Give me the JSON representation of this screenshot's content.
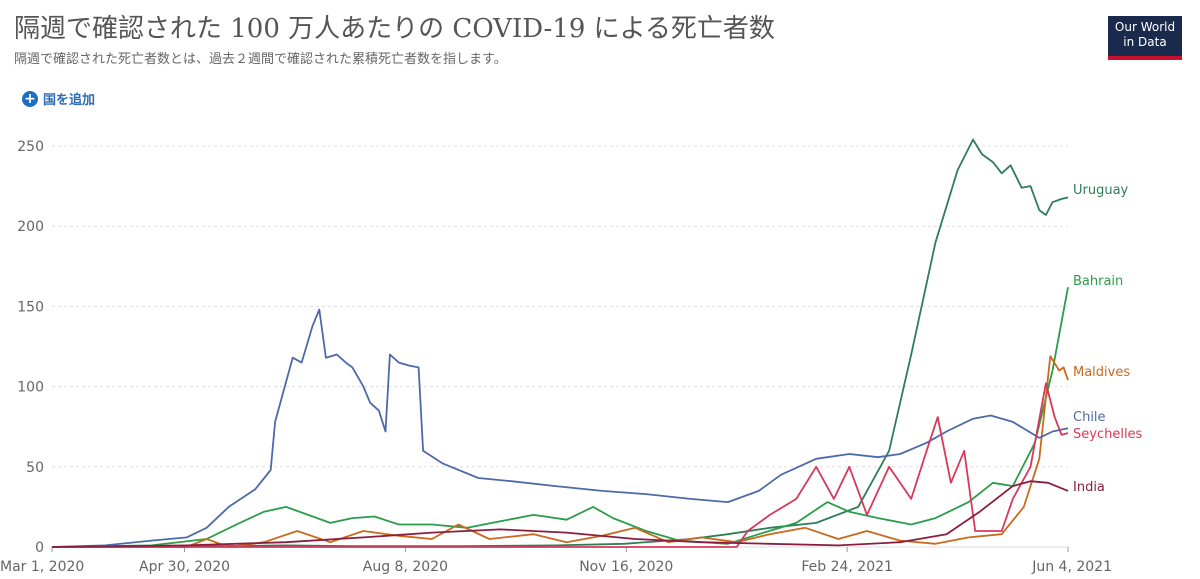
{
  "header": {
    "title": "隔週で確認された 100 万人あたりの COVID-19 による死亡者数",
    "subtitle": "隔週で確認された死亡者数とは、過去２週間で確認された累積死亡者数を指します。",
    "logo_line1": "Our World",
    "logo_line2": "in Data"
  },
  "controls": {
    "add_country": "国を追加"
  },
  "colors": {
    "grid": "#dddddd",
    "axis": "#999999"
  },
  "chart_data": {
    "type": "line",
    "x_ticks": [
      "Mar 1, 2020",
      "Apr 30, 2020",
      "Aug 8, 2020",
      "Nov 16, 2020",
      "Feb 24, 2021",
      "Jun 4, 2021"
    ],
    "xlim": [
      "2020-03-01",
      "2021-06-04"
    ],
    "ylim": [
      0,
      260
    ],
    "y_ticks": [
      0,
      50,
      100,
      150,
      200,
      250
    ],
    "grid": "horizontal",
    "series": [
      {
        "name": "Uruguay",
        "color": "#2e7d5b",
        "points": [
          [
            "2020-03-01",
            0
          ],
          [
            "2020-04-01",
            0.5
          ],
          [
            "2020-05-10",
            0.5
          ],
          [
            "2020-06-15",
            1
          ],
          [
            "2020-07-15",
            0.5
          ],
          [
            "2020-09-01",
            0.5
          ],
          [
            "2020-10-15",
            1
          ],
          [
            "2020-11-15",
            2
          ],
          [
            "2020-12-15",
            5
          ],
          [
            "2021-01-01",
            8
          ],
          [
            "2021-01-20",
            12
          ],
          [
            "2021-02-10",
            15
          ],
          [
            "2021-03-01",
            25
          ],
          [
            "2021-03-15",
            60
          ],
          [
            "2021-03-25",
            120
          ],
          [
            "2021-04-05",
            190
          ],
          [
            "2021-04-15",
            235
          ],
          [
            "2021-04-22",
            254
          ],
          [
            "2021-04-26",
            245
          ],
          [
            "2021-05-01",
            240
          ],
          [
            "2021-05-05",
            233
          ],
          [
            "2021-05-09",
            238
          ],
          [
            "2021-05-14",
            224
          ],
          [
            "2021-05-18",
            225
          ],
          [
            "2021-05-22",
            210
          ],
          [
            "2021-05-25",
            207
          ],
          [
            "2021-05-28",
            215
          ],
          [
            "2021-06-01",
            217
          ],
          [
            "2021-06-04",
            218
          ]
        ]
      },
      {
        "name": "Bahrain",
        "color": "#2a9d4a",
        "points": [
          [
            "2020-03-01",
            0
          ],
          [
            "2020-04-15",
            1
          ],
          [
            "2020-05-10",
            5
          ],
          [
            "2020-05-25",
            15
          ],
          [
            "2020-06-05",
            22
          ],
          [
            "2020-06-15",
            25
          ],
          [
            "2020-06-25",
            20
          ],
          [
            "2020-07-05",
            15
          ],
          [
            "2020-07-15",
            18
          ],
          [
            "2020-07-25",
            19
          ],
          [
            "2020-08-05",
            14
          ],
          [
            "2020-08-20",
            14
          ],
          [
            "2020-09-05",
            12
          ],
          [
            "2020-09-20",
            16
          ],
          [
            "2020-10-05",
            20
          ],
          [
            "2020-10-20",
            17
          ],
          [
            "2020-11-01",
            25
          ],
          [
            "2020-11-10",
            18
          ],
          [
            "2020-11-25",
            10
          ],
          [
            "2020-12-10",
            4
          ],
          [
            "2021-01-01",
            2
          ],
          [
            "2021-01-15",
            8
          ],
          [
            "2021-02-01",
            15
          ],
          [
            "2021-02-15",
            28
          ],
          [
            "2021-02-25",
            22
          ],
          [
            "2021-03-10",
            18
          ],
          [
            "2021-03-25",
            14
          ],
          [
            "2021-04-05",
            18
          ],
          [
            "2021-04-20",
            28
          ],
          [
            "2021-05-01",
            40
          ],
          [
            "2021-05-10",
            38
          ],
          [
            "2021-05-20",
            65
          ],
          [
            "2021-05-28",
            110
          ],
          [
            "2021-06-04",
            162
          ]
        ]
      },
      {
        "name": "Maldives",
        "color": "#c96a1c",
        "points": [
          [
            "2020-03-01",
            0
          ],
          [
            "2020-05-01",
            0
          ],
          [
            "2020-05-10",
            5
          ],
          [
            "2020-05-20",
            0
          ],
          [
            "2020-06-05",
            3
          ],
          [
            "2020-06-20",
            10
          ],
          [
            "2020-07-05",
            3
          ],
          [
            "2020-07-20",
            10
          ],
          [
            "2020-08-05",
            7
          ],
          [
            "2020-08-20",
            5
          ],
          [
            "2020-09-01",
            14
          ],
          [
            "2020-09-15",
            5
          ],
          [
            "2020-10-05",
            8
          ],
          [
            "2020-10-20",
            3
          ],
          [
            "2020-11-05",
            7
          ],
          [
            "2020-11-20",
            12
          ],
          [
            "2020-12-05",
            3
          ],
          [
            "2020-12-20",
            6
          ],
          [
            "2021-01-05",
            3
          ],
          [
            "2021-01-20",
            8
          ],
          [
            "2021-02-05",
            12
          ],
          [
            "2021-02-20",
            5
          ],
          [
            "2021-03-05",
            10
          ],
          [
            "2021-03-20",
            4
          ],
          [
            "2021-04-05",
            2
          ],
          [
            "2021-04-20",
            6
          ],
          [
            "2021-05-05",
            8
          ],
          [
            "2021-05-15",
            25
          ],
          [
            "2021-05-22",
            55
          ],
          [
            "2021-05-27",
            119
          ],
          [
            "2021-05-31",
            110
          ],
          [
            "2021-06-02",
            112
          ],
          [
            "2021-06-04",
            104
          ]
        ]
      },
      {
        "name": "Chile",
        "color": "#4d6aa8",
        "points": [
          [
            "2020-03-01",
            0
          ],
          [
            "2020-03-25",
            1
          ],
          [
            "2020-04-15",
            4
          ],
          [
            "2020-05-01",
            6
          ],
          [
            "2020-05-10",
            12
          ],
          [
            "2020-05-20",
            25
          ],
          [
            "2020-06-01",
            36
          ],
          [
            "2020-06-08",
            48
          ],
          [
            "2020-06-10",
            78
          ],
          [
            "2020-06-14",
            98
          ],
          [
            "2020-06-18",
            118
          ],
          [
            "2020-06-22",
            115
          ],
          [
            "2020-06-27",
            138
          ],
          [
            "2020-06-30",
            148
          ],
          [
            "2020-07-03",
            118
          ],
          [
            "2020-07-08",
            120
          ],
          [
            "2020-07-12",
            115
          ],
          [
            "2020-07-15",
            112
          ],
          [
            "2020-07-20",
            100
          ],
          [
            "2020-07-23",
            90
          ],
          [
            "2020-07-27",
            85
          ],
          [
            "2020-07-30",
            72
          ],
          [
            "2020-08-01",
            120
          ],
          [
            "2020-08-05",
            115
          ],
          [
            "2020-08-10",
            113
          ],
          [
            "2020-08-14",
            112
          ],
          [
            "2020-08-16",
            60
          ],
          [
            "2020-08-25",
            52
          ],
          [
            "2020-09-10",
            43
          ],
          [
            "2020-09-25",
            41
          ],
          [
            "2020-10-15",
            38
          ],
          [
            "2020-11-05",
            35
          ],
          [
            "2020-11-25",
            33
          ],
          [
            "2020-12-15",
            30
          ],
          [
            "2021-01-01",
            28
          ],
          [
            "2021-01-15",
            35
          ],
          [
            "2021-01-25",
            45
          ],
          [
            "2021-02-10",
            55
          ],
          [
            "2021-02-25",
            58
          ],
          [
            "2021-03-10",
            56
          ],
          [
            "2021-03-20",
            58
          ],
          [
            "2021-04-01",
            65
          ],
          [
            "2021-04-10",
            72
          ],
          [
            "2021-04-22",
            80
          ],
          [
            "2021-04-30",
            82
          ],
          [
            "2021-05-10",
            78
          ],
          [
            "2021-05-22",
            68
          ],
          [
            "2021-05-28",
            72
          ],
          [
            "2021-06-04",
            74
          ]
        ]
      },
      {
        "name": "Seychelles",
        "color": "#d6395a",
        "points": [
          [
            "2020-03-01",
            0
          ],
          [
            "2020-11-01",
            0
          ],
          [
            "2021-01-05",
            0
          ],
          [
            "2021-01-10",
            10
          ],
          [
            "2021-01-20",
            20
          ],
          [
            "2021-02-01",
            30
          ],
          [
            "2021-02-10",
            50
          ],
          [
            "2021-02-18",
            30
          ],
          [
            "2021-02-25",
            50
          ],
          [
            "2021-03-05",
            20
          ],
          [
            "2021-03-15",
            50
          ],
          [
            "2021-03-25",
            30
          ],
          [
            "2021-04-01",
            60
          ],
          [
            "2021-04-06",
            81
          ],
          [
            "2021-04-12",
            40
          ],
          [
            "2021-04-18",
            60
          ],
          [
            "2021-04-23",
            10
          ],
          [
            "2021-05-05",
            10
          ],
          [
            "2021-05-10",
            30
          ],
          [
            "2021-05-18",
            50
          ],
          [
            "2021-05-25",
            102
          ],
          [
            "2021-05-29",
            81
          ],
          [
            "2021-06-01",
            70
          ],
          [
            "2021-06-04",
            71
          ]
        ]
      },
      {
        "name": "India",
        "color": "#8b1e3f",
        "points": [
          [
            "2020-03-01",
            0
          ],
          [
            "2020-05-01",
            1
          ],
          [
            "2020-06-15",
            3
          ],
          [
            "2020-07-20",
            6
          ],
          [
            "2020-08-20",
            9
          ],
          [
            "2020-09-20",
            11
          ],
          [
            "2020-10-20",
            9
          ],
          [
            "2020-11-20",
            5
          ],
          [
            "2020-12-20",
            3
          ],
          [
            "2021-01-20",
            2
          ],
          [
            "2021-02-20",
            1
          ],
          [
            "2021-03-20",
            3
          ],
          [
            "2021-04-10",
            8
          ],
          [
            "2021-04-25",
            22
          ],
          [
            "2021-05-10",
            38
          ],
          [
            "2021-05-18",
            41
          ],
          [
            "2021-05-26",
            40
          ],
          [
            "2021-06-04",
            35
          ]
        ]
      }
    ]
  }
}
